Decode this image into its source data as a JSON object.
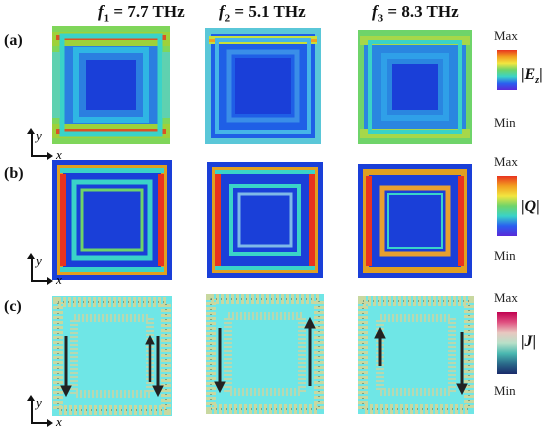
{
  "columns": [
    {
      "f": "f",
      "sub": "1",
      "value": " = 7.7 THz"
    },
    {
      "f": "f",
      "sub": "2",
      "value": " = 5.1 THz"
    },
    {
      "f": "f",
      "sub": "3",
      "value": " = 8.3 THz"
    }
  ],
  "rows": [
    {
      "label": "(a)",
      "quantity": "E",
      "quantity_sub": "z",
      "max": "Max",
      "min": "Min"
    },
    {
      "label": "(b)",
      "quantity": "Q",
      "quantity_sub": "",
      "max": "Max",
      "min": "Min"
    },
    {
      "label": "(c)",
      "quantity": "J",
      "quantity_sub": "",
      "max": "Max",
      "min": "Min"
    }
  ],
  "axis": {
    "x": "x",
    "y": "y"
  },
  "colors": {
    "field_background": "#1a3fd8",
    "resonator_ring": "#3ad3c8",
    "hot_red": "#e8331f",
    "hot_yellow": "#f2e640",
    "current_cyan": "#6fe6e6",
    "arrow": "#222222"
  }
}
